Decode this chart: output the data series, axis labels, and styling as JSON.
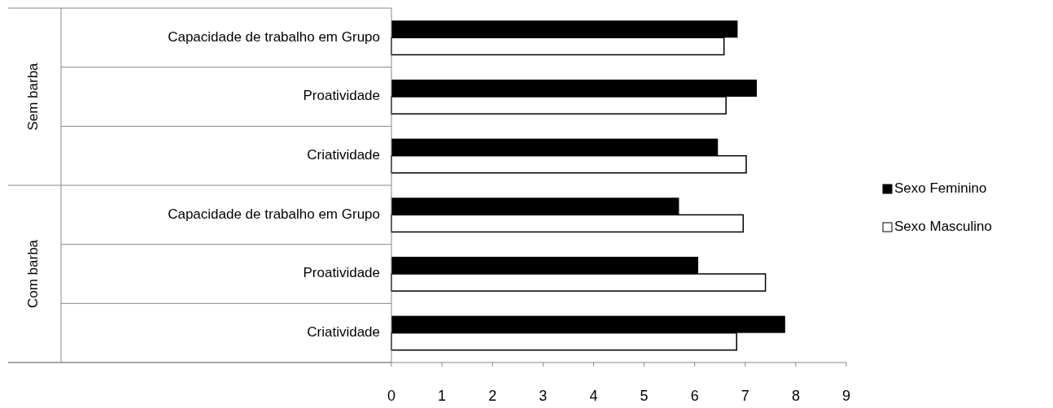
{
  "chart_data": {
    "type": "bar",
    "orientation": "horizontal",
    "categories": [
      "Capacidade de trabalho em Grupo",
      "Proatividade",
      "Criatividade",
      "Capacidade de trabalho em Grupo",
      "Proatividade",
      "Criatividade"
    ],
    "series": [
      {
        "name": "Sexo Feminino",
        "color": "#000000",
        "values": [
          6.85,
          7.23,
          6.46,
          5.69,
          6.07,
          7.79
        ]
      },
      {
        "name": "Sexo Masculino",
        "color": "#ffffff",
        "values": [
          6.58,
          6.62,
          7.02,
          6.96,
          7.4,
          6.83
        ]
      }
    ],
    "xlim": [
      0,
      9
    ],
    "xticks": [
      0,
      1,
      2,
      3,
      4,
      5,
      6,
      7,
      8,
      9
    ],
    "annotations": [
      "Sem barba",
      "Com barba"
    ],
    "legend": "right",
    "grid": false
  }
}
